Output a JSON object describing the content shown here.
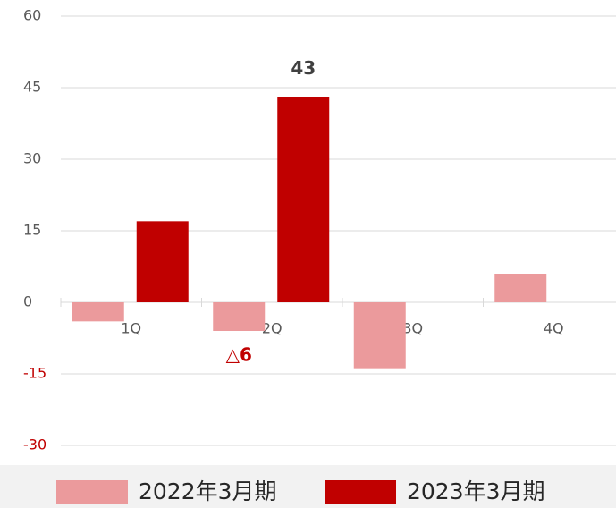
{
  "chart_data": {
    "type": "bar",
    "categories": [
      "1Q",
      "2Q",
      "3Q",
      "4Q"
    ],
    "series": [
      {
        "name": "2022年3月期",
        "color": "#eb9a9c",
        "values": [
          -4,
          -6,
          -14,
          6
        ],
        "value_labels": [
          null,
          "△6",
          null,
          null
        ]
      },
      {
        "name": "2023年3月期",
        "color": "#c00000",
        "values": [
          17,
          43,
          null,
          null
        ],
        "value_labels": [
          null,
          "43",
          null,
          null
        ]
      }
    ],
    "ylim": [
      -30,
      60
    ],
    "yticks": [
      -30,
      -15,
      0,
      15,
      30,
      45,
      60
    ],
    "grid": true,
    "negative_color": "#c00000",
    "legend": "bottom"
  }
}
